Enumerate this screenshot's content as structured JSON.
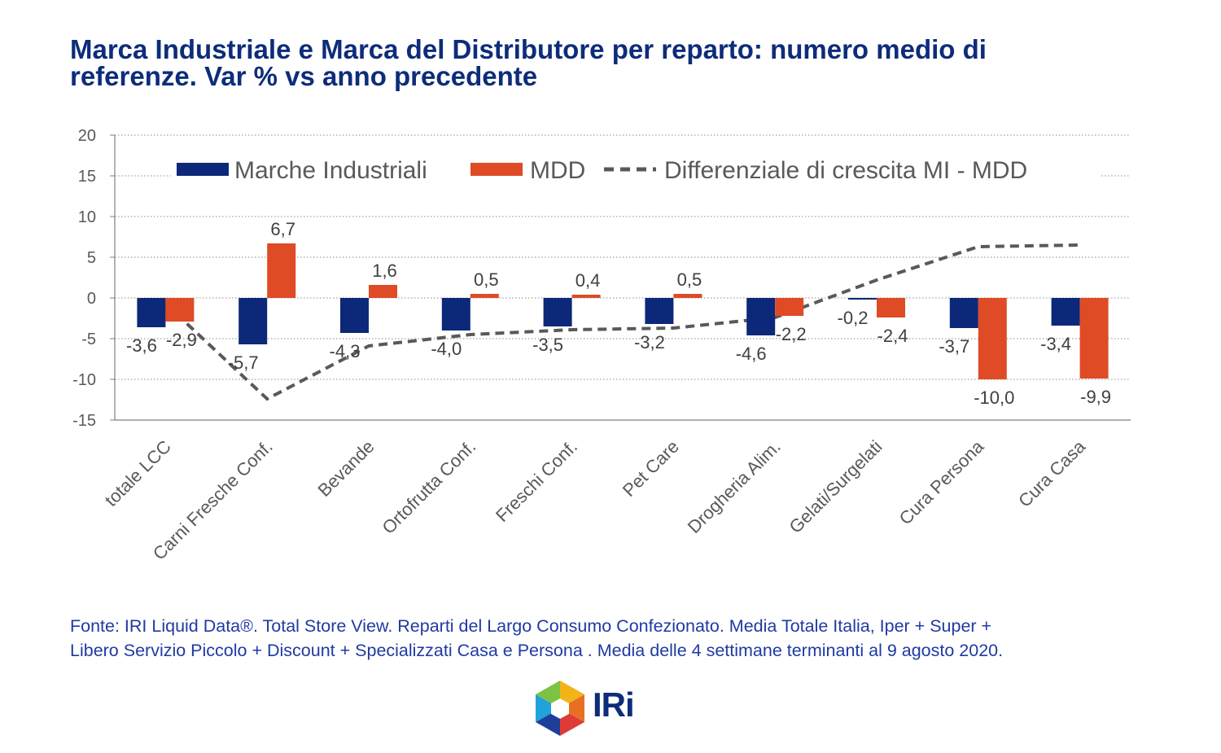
{
  "title": {
    "line1": "Marca Industriale e Marca del Distributore per reparto: numero medio di",
    "line2": "referenze. Var % vs anno precedente"
  },
  "chart_data": {
    "type": "bar",
    "categories": [
      "totale LCC",
      "Carni Fresche Conf.",
      "Bevande",
      "Ortofrutta Conf.",
      "Freschi Conf.",
      "Pet Care",
      "Drogheria Alim.",
      "Gelati/Surgelati",
      "Cura Persona",
      "Cura Casa"
    ],
    "series": [
      {
        "name": "Marche Industriali",
        "kind": "bar",
        "color": "#0d2878",
        "values": [
          -3.6,
          -5.7,
          -4.3,
          -4.0,
          -3.5,
          -3.2,
          -4.6,
          -0.2,
          -3.7,
          -3.4
        ],
        "labels": [
          "-3,6",
          "-5,7",
          "-4,3",
          "-4,0",
          "-3,5",
          "-3,2",
          "-4,6",
          "-0,2",
          "-3,7",
          "-3,4"
        ]
      },
      {
        "name": "MDD",
        "kind": "bar",
        "color": "#de4b25",
        "values": [
          -2.9,
          6.7,
          1.6,
          0.5,
          0.4,
          0.5,
          -2.2,
          -2.4,
          -10.0,
          -9.9
        ],
        "labels": [
          "-2,9",
          "6,7",
          "1,6",
          "0,5",
          "0,4",
          "0,5",
          "-2,2",
          "-2,4",
          "-10,0",
          "-9,9"
        ]
      },
      {
        "name": "Differenziale di crescita MI - MDD",
        "kind": "line-dashed",
        "color": "#595959",
        "values": [
          -0.7,
          -12.4,
          -5.9,
          -4.5,
          -3.9,
          -3.7,
          -2.4,
          2.2,
          6.3,
          6.5
        ]
      }
    ],
    "yticks": [
      "20",
      "15",
      "10",
      "5",
      "0",
      "-5",
      "-10",
      "-15"
    ],
    "ylim": [
      -15,
      20
    ],
    "grid": true,
    "legend": "top"
  },
  "footnote": {
    "line1": "Fonte: IRI Liquid Data®. Total Store View. Reparti del Largo Consumo Confezionato. Media Totale Italia, Iper + Super +",
    "line2": "Libero Servizio Piccolo + Discount + Specializzati Casa e Persona . Media delle 4 settimane terminanti al 9 agosto  2020."
  },
  "logo": {
    "text": "IRi",
    "icon": "iri-hexagon-cube-icon"
  }
}
